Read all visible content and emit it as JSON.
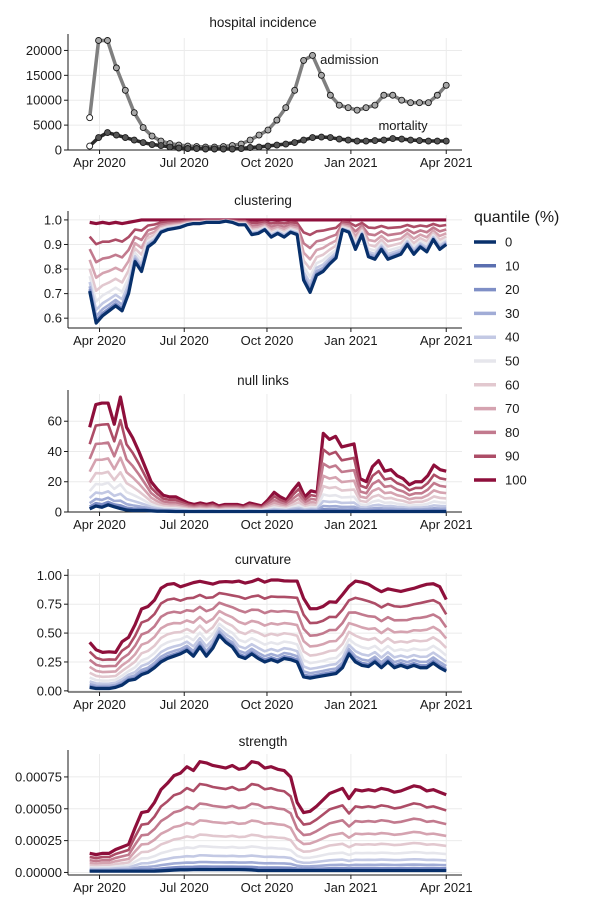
{
  "legend": {
    "title": "quantile (%)",
    "entries": [
      {
        "label": "0",
        "color": "#08306b"
      },
      {
        "label": "10",
        "color": "#5b6fb0"
      },
      {
        "label": "20",
        "color": "#7f8fc6"
      },
      {
        "label": "30",
        "color": "#a1acd6"
      },
      {
        "label": "40",
        "color": "#c3c9e4"
      },
      {
        "label": "50",
        "color": "#e6e6ec"
      },
      {
        "label": "60",
        "color": "#e2c8cf"
      },
      {
        "label": "70",
        "color": "#d5a3b0"
      },
      {
        "label": "80",
        "color": "#c27a8e"
      },
      {
        "label": "90",
        "color": "#ad4d67"
      },
      {
        "label": "100",
        "color": "#8e0f3b"
      }
    ]
  },
  "chart_data": [
    {
      "type": "line",
      "title": "hospital incidence",
      "x_ticks": [
        "Apr 2020",
        "Jul 2020",
        "Oct 2020",
        "Jan 2021",
        "Apr 2021"
      ],
      "y_ticks": [
        "0",
        "5000",
        "10000",
        "15000",
        "20000"
      ],
      "ylim": [
        0,
        22500
      ],
      "annotations": [
        "admission",
        "mortality"
      ],
      "series": [
        {
          "name": "admission",
          "color": "#7f7f7f",
          "values": [
            6500,
            22000,
            22000,
            16500,
            12000,
            7500,
            4500,
            2800,
            1800,
            1300,
            1000,
            800,
            700,
            600,
            600,
            700,
            900,
            1200,
            2000,
            3000,
            4000,
            6000,
            8500,
            12000,
            18000,
            19000,
            15000,
            11000,
            9000,
            8500,
            8000,
            8500,
            9000,
            11000,
            11000,
            10000,
            9500,
            9500,
            9500,
            11000,
            13000
          ]
        },
        {
          "name": "mortality",
          "color": "#2b2b2b",
          "values": [
            800,
            2500,
            3500,
            3000,
            2500,
            2000,
            1500,
            1100,
            900,
            600,
            400,
            300,
            300,
            200,
            200,
            200,
            200,
            300,
            500,
            600,
            800,
            1000,
            1200,
            1500,
            2000,
            2500,
            2600,
            2500,
            2200,
            2000,
            1800,
            1800,
            1900,
            2000,
            2300,
            2200,
            2000,
            1900,
            1800,
            1800,
            1800
          ]
        }
      ]
    },
    {
      "type": "line",
      "title": "clustering",
      "x_ticks": [
        "Apr 2020",
        "Jul 2020",
        "Oct 2020",
        "Jan 2021",
        "Apr 2021"
      ],
      "y_ticks": [
        "0.6",
        "0.7",
        "0.8",
        "0.9",
        "1.0"
      ],
      "ylim": [
        0.56,
        1.02
      ],
      "quantile_series": {
        "0": [
          0.71,
          0.58,
          0.61,
          0.63,
          0.65,
          0.63,
          0.7,
          0.83,
          0.79,
          0.89,
          0.91,
          0.95,
          0.96,
          0.965,
          0.97,
          0.98,
          0.985,
          0.985,
          0.99,
          0.99,
          0.99,
          0.995,
          0.99,
          0.98,
          0.98,
          0.94,
          0.945,
          0.96,
          0.93,
          0.945,
          0.93,
          0.95,
          0.94,
          0.755,
          0.705,
          0.775,
          0.79,
          0.82,
          0.845,
          0.96,
          0.95,
          0.88,
          0.94,
          0.85,
          0.84,
          0.88,
          0.84,
          0.85,
          0.86,
          0.9,
          0.86,
          0.89,
          0.87,
          0.92,
          0.88,
          0.9
        ],
        "100": [
          0.99,
          0.985,
          0.99,
          0.985,
          0.99,
          0.985,
          0.99,
          0.995,
          1,
          1,
          1,
          1,
          1,
          1,
          1,
          1,
          1,
          1,
          1,
          1,
          1,
          1,
          1,
          1,
          1,
          1,
          1,
          1,
          1,
          1,
          1,
          1,
          1,
          1,
          1,
          1,
          1,
          1,
          1,
          1,
          1,
          1,
          1,
          1,
          1,
          1,
          1,
          1,
          1,
          1,
          1,
          1,
          1,
          1,
          1,
          1
        ]
      }
    },
    {
      "type": "line",
      "title": "null links",
      "x_ticks": [
        "Apr 2020",
        "Jul 2020",
        "Oct 2020",
        "Jan 2021",
        "Apr 2021"
      ],
      "y_ticks": [
        "0",
        "20",
        "40",
        "60"
      ],
      "ylim": [
        0,
        78
      ],
      "quantile_series": {
        "0": [
          2,
          4,
          3,
          5,
          3,
          2,
          1,
          1,
          1,
          1,
          0.5,
          0.5,
          0.5,
          0.3,
          0.3,
          0.3,
          0.3,
          0.3,
          0.3,
          0.3,
          0.3,
          0.3,
          0.3,
          0.3,
          0.3,
          0.3,
          0.3,
          0.3,
          0.3,
          0.3,
          0.3,
          0.3,
          0.3,
          0.3,
          0.3,
          0.3,
          0.3,
          0.3,
          0.3,
          0.3,
          0.3,
          0.3,
          0.3,
          0.3,
          0.3,
          0.3,
          0.3,
          0.3,
          0.3,
          0.3,
          0.3,
          0.3,
          0.3,
          0.3,
          0.3,
          0.3
        ],
        "100": [
          56,
          71,
          72,
          72,
          58,
          76,
          56,
          49,
          40,
          30,
          20,
          15,
          11,
          10,
          10,
          8,
          6,
          5,
          6,
          5,
          6,
          4,
          5,
          5,
          5,
          4,
          6,
          5,
          4,
          8,
          13,
          10,
          8,
          14,
          19,
          10,
          14,
          13,
          52,
          48,
          50,
          43,
          44,
          45,
          22,
          20,
          30,
          34,
          27,
          28,
          24,
          22,
          18,
          20,
          20,
          24,
          31,
          28,
          27
        ]
      }
    },
    {
      "type": "line",
      "title": "curvature",
      "x_ticks": [
        "Apr 2020",
        "Jul 2020",
        "Oct 2020",
        "Jan 2021",
        "Apr 2021"
      ],
      "y_ticks": [
        "0.00",
        "0.25",
        "0.50",
        "0.75",
        "1.00"
      ],
      "ylim": [
        -0.01,
        1.02
      ],
      "quantile_series": {
        "0": [
          0.03,
          0.02,
          0.02,
          0.02,
          0.03,
          0.05,
          0.09,
          0.1,
          0.14,
          0.16,
          0.2,
          0.25,
          0.28,
          0.3,
          0.32,
          0.35,
          0.3,
          0.38,
          0.3,
          0.37,
          0.48,
          0.42,
          0.38,
          0.3,
          0.28,
          0.32,
          0.28,
          0.25,
          0.27,
          0.25,
          0.28,
          0.27,
          0.25,
          0.12,
          0.11,
          0.12,
          0.13,
          0.14,
          0.15,
          0.2,
          0.32,
          0.25,
          0.22,
          0.21,
          0.25,
          0.2,
          0.25,
          0.2,
          0.22,
          0.2,
          0.22,
          0.2,
          0.2,
          0.24,
          0.2,
          0.17
        ],
        "100": [
          0.42,
          0.35,
          0.33,
          0.34,
          0.33,
          0.48,
          0.45,
          0.7,
          0.72,
          0.75,
          0.88,
          0.92,
          0.93,
          0.9,
          0.92,
          0.94,
          0.95,
          0.93,
          0.92,
          0.96,
          0.93,
          0.96,
          0.93,
          0.94,
          0.97,
          0.94,
          0.96,
          0.96,
          0.95,
          0.95,
          0.95,
          0.7,
          0.72,
          0.7,
          0.78,
          0.75,
          0.82,
          0.9,
          0.95,
          0.94,
          0.92,
          0.88,
          0.85,
          0.9,
          0.85,
          0.87,
          0.88,
          0.9,
          0.92,
          0.93,
          0.91,
          0.79
        ]
      }
    },
    {
      "type": "line",
      "title": "strength",
      "x_ticks": [
        "Apr 2020",
        "Jul 2020",
        "Oct 2020",
        "Jan 2021",
        "Apr 2021"
      ],
      "y_ticks": [
        "0.00000",
        "0.00025",
        "0.00050",
        "0.00075"
      ],
      "ylim": [
        -2e-05,
        0.00093
      ],
      "quantile_series": {
        "0": [
          1e-05,
          1e-05,
          1e-05,
          1e-05,
          1e-05,
          1e-05,
          1e-05,
          1e-05,
          1e-05,
          1e-05,
          1.2e-05,
          1.5e-05,
          1.8e-05,
          2e-05,
          2e-05,
          2.2e-05,
          2.2e-05,
          2.2e-05,
          2.2e-05,
          2.2e-05,
          2.2e-05,
          2.2e-05,
          2.2e-05,
          2e-05,
          1.5e-05,
          1.5e-05,
          1.5e-05,
          1.5e-05,
          1.5e-05,
          1.5e-05,
          1.5e-05,
          1.5e-05,
          1.5e-05,
          1.5e-05,
          1.5e-05,
          1.5e-05,
          1.5e-05,
          1.5e-05,
          1.5e-05,
          1.5e-05,
          1.5e-05,
          1.5e-05,
          1.5e-05,
          1.5e-05,
          1.5e-05,
          1.5e-05,
          1.5e-05,
          1.5e-05,
          1.5e-05,
          1.5e-05,
          1.5e-05,
          1.5e-05
        ],
        "100": [
          0.00015,
          0.00014,
          0.00015,
          0.00015,
          0.00018,
          0.0002,
          0.00022,
          0.00035,
          0.00047,
          0.00048,
          0.00055,
          0.00065,
          0.0007,
          0.00076,
          0.00078,
          0.00083,
          0.0008,
          0.00087,
          0.00086,
          0.00084,
          0.00083,
          0.00082,
          0.00084,
          0.00081,
          0.00082,
          0.00087,
          0.00086,
          0.00082,
          0.00083,
          0.00081,
          0.0008,
          0.00075,
          0.00055,
          0.00047,
          0.00048,
          0.00052,
          0.00057,
          0.00062,
          0.00064,
          0.00066,
          0.00058,
          0.00065,
          0.00064,
          0.00065,
          0.00064,
          0.00066,
          0.00065,
          0.00063,
          0.00064,
          0.00066,
          0.00068,
          0.00067,
          0.00064,
          0.00065,
          0.00063,
          0.00061
        ]
      }
    }
  ]
}
